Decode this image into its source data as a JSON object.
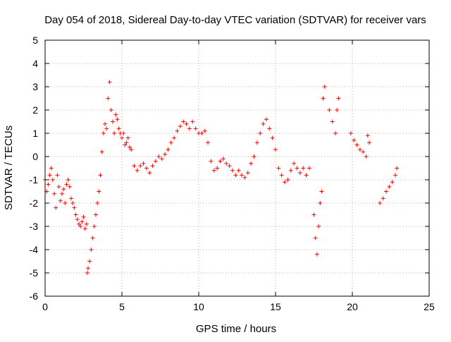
{
  "chart_data": {
    "type": "scatter",
    "title": "Day 054 of 2018, Sidereal Day-to-day VTEC variation (SDTVAR) for receiver vars",
    "xlabel": "GPS time / hours",
    "ylabel": "SDTVAR / TECUs",
    "xlim": [
      0,
      25
    ],
    "ylim": [
      -6,
      5
    ],
    "xticks": [
      "0",
      "5",
      "10",
      "15",
      "20",
      "25"
    ],
    "yticks": [
      "-6",
      "-5",
      "-4",
      "-3",
      "-2",
      "-1",
      "0",
      "1",
      "2",
      "3",
      "4",
      "5"
    ],
    "grid": true,
    "marker": "+",
    "series": [
      {
        "name": "vars",
        "color": "#ff0000",
        "x": [
          0.0,
          0.1,
          0.2,
          0.3,
          0.4,
          0.5,
          0.6,
          0.7,
          0.8,
          0.9,
          1.0,
          1.1,
          1.2,
          1.3,
          1.4,
          1.5,
          1.6,
          1.7,
          1.8,
          1.9,
          2.0,
          2.1,
          2.2,
          2.3,
          2.4,
          2.5,
          2.6,
          2.7,
          2.75,
          2.8,
          2.9,
          3.0,
          3.1,
          3.2,
          3.3,
          3.4,
          3.5,
          3.6,
          3.7,
          3.8,
          3.9,
          4.0,
          4.1,
          4.2,
          4.3,
          4.4,
          4.5,
          4.6,
          4.7,
          4.8,
          4.9,
          5.0,
          5.1,
          5.2,
          5.3,
          5.4,
          5.5,
          5.6,
          5.8,
          6.0,
          6.2,
          6.4,
          6.6,
          6.8,
          7.0,
          7.2,
          7.4,
          7.6,
          7.8,
          8.0,
          8.2,
          8.4,
          8.6,
          8.8,
          9.0,
          9.2,
          9.4,
          9.6,
          9.8,
          10.0,
          10.2,
          10.4,
          10.6,
          10.8,
          11.0,
          11.2,
          11.4,
          11.6,
          11.8,
          12.0,
          12.2,
          12.4,
          12.6,
          12.8,
          13.0,
          13.2,
          13.4,
          13.6,
          13.8,
          14.0,
          14.2,
          14.4,
          14.6,
          14.8,
          15.0,
          15.2,
          15.4,
          15.6,
          15.8,
          16.0,
          16.2,
          16.4,
          16.6,
          16.8,
          17.0,
          17.2,
          17.5,
          17.6,
          17.7,
          17.8,
          17.9,
          18.0,
          18.1,
          18.2,
          18.5,
          18.7,
          18.9,
          19.0,
          19.1,
          19.9,
          20.1,
          20.3,
          20.5,
          20.7,
          20.9,
          21.0,
          21.1,
          21.8,
          22.0,
          22.2,
          22.4,
          22.6,
          22.8,
          22.9
        ],
        "y": [
          -1.0,
          -1.5,
          -1.2,
          -0.8,
          -0.5,
          -1.0,
          -1.6,
          -2.2,
          -0.8,
          -1.3,
          -1.9,
          -1.6,
          -1.4,
          -2.0,
          -1.2,
          -1.0,
          -1.3,
          -1.8,
          -2.0,
          -2.2,
          -2.5,
          -2.7,
          -2.9,
          -3.0,
          -2.8,
          -2.6,
          -3.1,
          -2.9,
          -5.0,
          -4.8,
          -4.5,
          -4.0,
          -3.5,
          -3.0,
          -2.5,
          -2.0,
          -1.5,
          -0.8,
          0.2,
          1.0,
          1.4,
          1.2,
          2.5,
          3.2,
          2.0,
          1.5,
          1.0,
          1.8,
          1.6,
          1.2,
          1.0,
          0.8,
          1.0,
          0.5,
          0.6,
          0.8,
          0.4,
          0.3,
          -0.4,
          -0.6,
          -0.4,
          -0.3,
          -0.5,
          -0.7,
          -0.4,
          -0.2,
          0.0,
          -0.1,
          0.1,
          0.3,
          0.6,
          0.8,
          1.1,
          1.3,
          1.5,
          1.4,
          1.2,
          1.5,
          1.2,
          1.0,
          1.0,
          1.1,
          0.6,
          -0.2,
          -0.6,
          -0.5,
          -0.2,
          -0.1,
          -0.3,
          -0.4,
          -0.6,
          -0.8,
          -0.6,
          -0.8,
          -0.9,
          -0.7,
          -0.3,
          0.0,
          0.6,
          1.0,
          1.4,
          1.6,
          1.2,
          0.8,
          0.3,
          -0.5,
          -0.8,
          -1.1,
          -1.0,
          -0.6,
          -0.3,
          -0.5,
          -0.7,
          -0.5,
          -0.8,
          -0.5,
          -2.5,
          -3.5,
          -4.2,
          -3.0,
          -2.0,
          -1.5,
          2.5,
          3.0,
          2.0,
          1.5,
          1.0,
          2.0,
          2.5,
          1.0,
          0.7,
          0.5,
          0.3,
          0.2,
          0.0,
          0.9,
          0.6,
          -2.0,
          -1.8,
          -1.5,
          -1.3,
          -1.1,
          -0.8,
          -0.5
        ]
      }
    ]
  }
}
